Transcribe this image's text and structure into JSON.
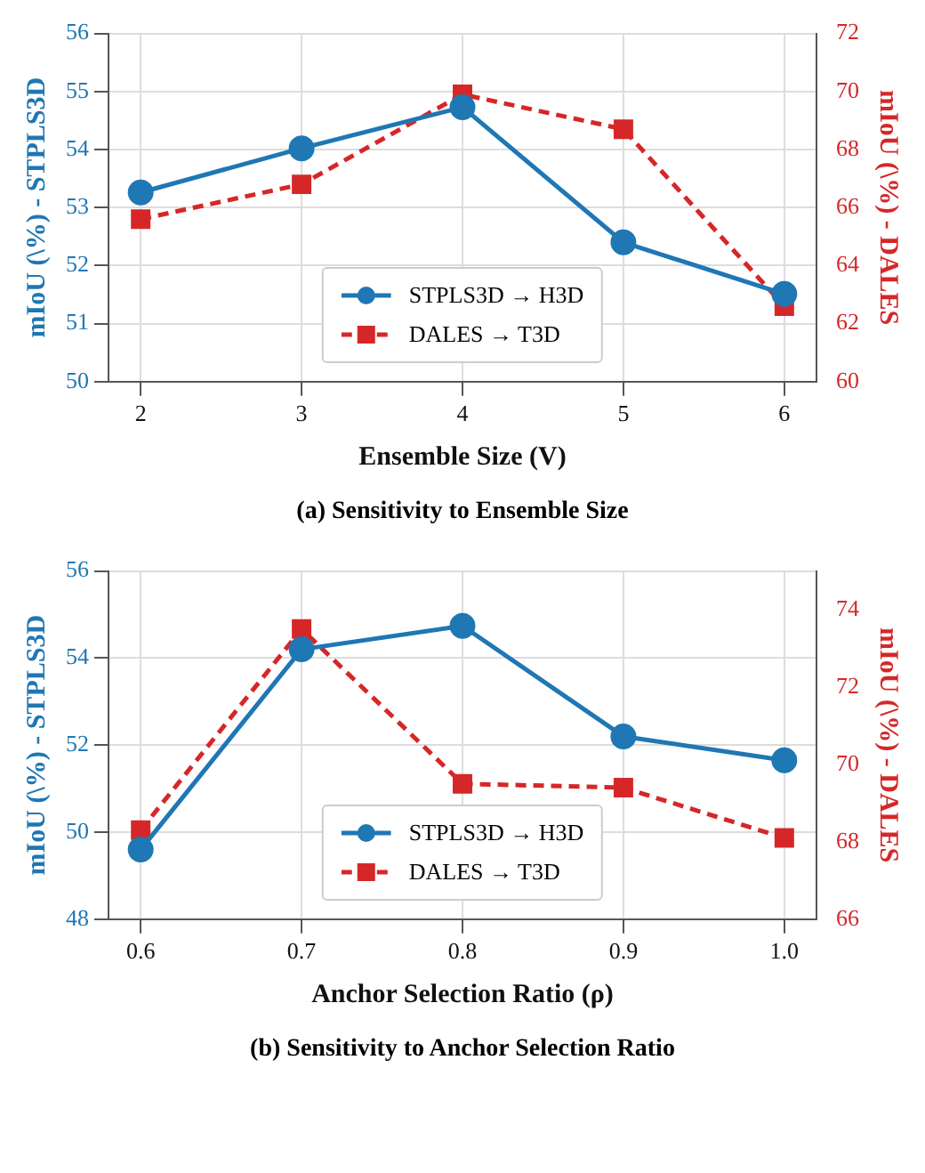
{
  "chart_data": [
    {
      "type": "line",
      "title": "(a) Sensitivity to Ensemble Size",
      "xlabel": "Ensemble Size (V)",
      "ylabel": "mIoU (\\%) - STPLS3D",
      "y2label": "mIoU (\\%) - DALES",
      "x": [
        2,
        3,
        4,
        5,
        6
      ],
      "xlim": [
        1.8,
        6.2
      ],
      "xticks": [
        2,
        3,
        4,
        5,
        6
      ],
      "ylim": [
        50,
        56
      ],
      "yticks": [
        50,
        51,
        52,
        53,
        54,
        55,
        56
      ],
      "y2lim": [
        60,
        72
      ],
      "y2ticks": [
        60,
        62,
        64,
        66,
        68,
        70,
        72
      ],
      "grid": true,
      "legend": "bottom",
      "series": [
        {
          "name": "STPLS3D → H3D",
          "color": "#1f77b4",
          "values": [
            53.26,
            54.02,
            54.73,
            52.4,
            51.51
          ],
          "marker": "circle",
          "line_style": "solid"
        },
        {
          "name": "DALES → T3D",
          "color": "#d62728",
          "values": [
            65.6,
            66.8,
            69.9,
            68.7,
            62.6
          ],
          "axis": "y2",
          "marker": "square",
          "line_style": "dashed"
        }
      ]
    },
    {
      "type": "line",
      "title": "(b) Sensitivity to Anchor Selection Ratio",
      "xlabel": "Anchor Selection Ratio (ρ)",
      "ylabel": "mIoU (\\%) - STPLS3D",
      "y2label": "mIoU (\\%) - DALES",
      "x": [
        0.6,
        0.7,
        0.8,
        0.9,
        1.0
      ],
      "xlim": [
        0.58,
        1.02
      ],
      "xticks": [
        0.6,
        0.7,
        0.8,
        0.9,
        {
          "value": 1,
          "label": "1.0"
        }
      ],
      "ylim": [
        48,
        56
      ],
      "yticks": [
        48,
        50,
        52,
        54,
        56
      ],
      "y2lim": [
        66,
        75
      ],
      "y2ticks": [
        66,
        68,
        70,
        72,
        74
      ],
      "grid": true,
      "legend": "bottom",
      "series": [
        {
          "name": "STPLS3D → H3D",
          "color": "#1f77b4",
          "values": [
            49.6,
            54.2,
            54.74,
            52.2,
            51.65
          ],
          "marker": "circle",
          "line_style": "solid"
        },
        {
          "name": "DALES → T3D",
          "color": "#d62728",
          "values": [
            68.3,
            73.5,
            69.5,
            69.4,
            68.1
          ],
          "axis": "y2",
          "marker": "square",
          "line_style": "dashed"
        }
      ]
    }
  ]
}
